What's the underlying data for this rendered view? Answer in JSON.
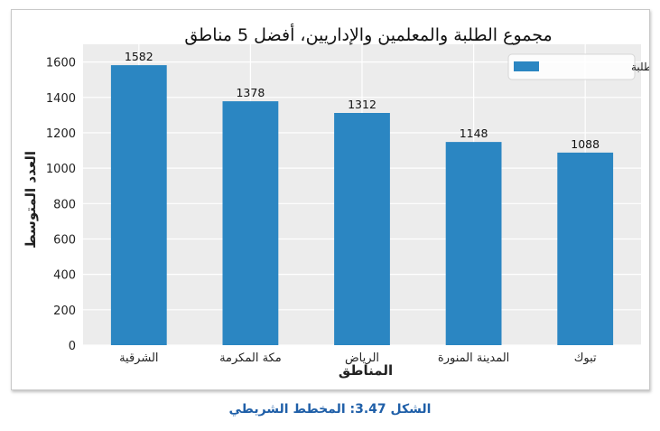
{
  "chart_data": {
    "type": "bar",
    "title": "مجموع الطلبة والمعلمين والإداريين، أفضل 5 مناطق",
    "xlabel": "المناطق",
    "ylabel": "العدد المتوسط",
    "categories": [
      "الشرقية",
      "مكة المكرمة",
      "الرياض",
      "المدينة المنورة",
      "تبوك"
    ],
    "series": [
      {
        "name": "مجموع الطلبة",
        "values": [
          1582,
          1378,
          1312,
          1148,
          1088
        ]
      }
    ],
    "data_labels": [
      "1582",
      "1378",
      "1312",
      "1148",
      "1088"
    ],
    "ylim": [
      0,
      1700
    ],
    "yticks": [
      0,
      200,
      400,
      600,
      800,
      1000,
      1200,
      1400,
      1600
    ],
    "grid": true,
    "legend_position": "top-right",
    "colors": {
      "bar": "#2b86c2",
      "background": "#ececec",
      "grid": "#ffffff",
      "caption": "#1f5fa8"
    }
  },
  "caption": "الشكل 3.47: المخطط الشريطي"
}
